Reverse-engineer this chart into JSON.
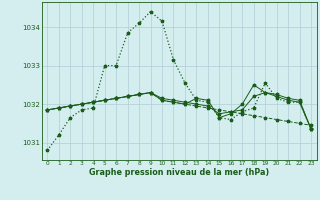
{
  "title": "Graphe pression niveau de la mer (hPa)",
  "background_color": "#d4eef0",
  "grid_color": "#aecdd4",
  "line_color": "#1a5c1a",
  "x_labels": [
    "0",
    "1",
    "2",
    "3",
    "4",
    "5",
    "6",
    "7",
    "8",
    "9",
    "10",
    "11",
    "12",
    "13",
    "14",
    "15",
    "16",
    "17",
    "18",
    "19",
    "20",
    "21",
    "22",
    "23"
  ],
  "ylim": [
    1030.55,
    1034.65
  ],
  "yticks": [
    1031,
    1032,
    1033,
    1034
  ],
  "figsize": [
    3.2,
    2.0
  ],
  "dpi": 100,
  "series1": [
    1030.8,
    1031.2,
    1031.65,
    1031.85,
    1031.9,
    1033.0,
    1033.0,
    1033.85,
    1034.1,
    1034.4,
    1034.15,
    1033.15,
    1032.55,
    1032.1,
    1032.05,
    1031.65,
    1031.6,
    1031.8,
    1031.9,
    1032.55,
    1032.15,
    1032.05,
    1032.05,
    1031.35
  ],
  "series2": [
    1031.85,
    1031.9,
    1031.95,
    1032.0,
    1032.05,
    1032.1,
    1032.15,
    1032.2,
    1032.25,
    1032.3,
    1032.15,
    1032.1,
    1032.05,
    1032.0,
    1031.95,
    1031.75,
    1031.8,
    1031.85,
    1032.2,
    1032.3,
    1032.25,
    1032.15,
    1032.1,
    1031.35
  ],
  "series3": [
    1031.85,
    1031.9,
    1031.95,
    1032.0,
    1032.05,
    1032.1,
    1032.15,
    1032.2,
    1032.25,
    1032.3,
    1032.1,
    1032.05,
    1032.0,
    1032.15,
    1032.1,
    1031.65,
    1031.75,
    1032.0,
    1032.5,
    1032.3,
    1032.2,
    1032.1,
    1032.05,
    1031.35
  ],
  "series4": [
    1031.85,
    1031.9,
    1031.95,
    1032.0,
    1032.05,
    1032.1,
    1032.15,
    1032.2,
    1032.25,
    1032.3,
    1032.1,
    1032.05,
    1032.0,
    1031.95,
    1031.9,
    1031.85,
    1031.8,
    1031.75,
    1031.7,
    1031.65,
    1031.6,
    1031.55,
    1031.5,
    1031.45
  ]
}
